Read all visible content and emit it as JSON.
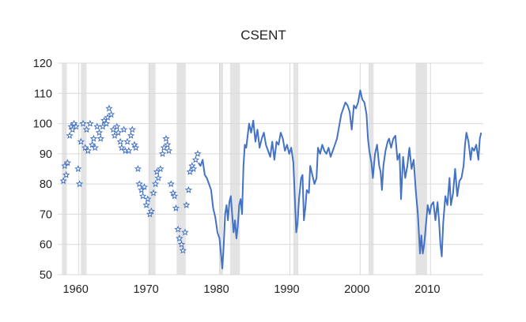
{
  "chart_data": {
    "type": "line",
    "title": "CSENT",
    "xlabel": "",
    "ylabel": "",
    "xlim": [
      1957,
      2017.5
    ],
    "ylim": [
      50,
      120
    ],
    "grid": true,
    "legend": "none",
    "y_ticks": [
      "50",
      "60",
      "70",
      "80",
      "90",
      "100",
      "110",
      "120"
    ],
    "x_ticks": [
      {
        "value": 1960,
        "label": "1960"
      },
      {
        "value": 1970,
        "label": "1970"
      },
      {
        "value": 1980,
        "label": "1980"
      },
      {
        "value": 1990,
        "label": "1990"
      },
      {
        "value": 2000,
        "label": "2000"
      },
      {
        "value": 2010,
        "label": "2010"
      }
    ],
    "colors": {
      "line": "#4472c4",
      "recession": "#e3e3e3",
      "grid": "#d9d9d9"
    },
    "recessions": [
      [
        1957.6,
        1958.3
      ],
      [
        1960.3,
        1961.1
      ],
      [
        1969.9,
        1970.9
      ],
      [
        1973.9,
        1975.2
      ],
      [
        1980.0,
        1980.5
      ],
      [
        1981.5,
        1982.9
      ],
      [
        1990.5,
        1991.2
      ],
      [
        2001.2,
        2001.9
      ],
      [
        2007.9,
        2009.5
      ]
    ],
    "series": [
      {
        "style": "markers",
        "points": [
          [
            1957.8,
            81
          ],
          [
            1958.0,
            86
          ],
          [
            1958.2,
            83
          ],
          [
            1958.4,
            87
          ],
          [
            1958.7,
            96
          ],
          [
            1958.9,
            99
          ],
          [
            1959.1,
            98
          ],
          [
            1959.3,
            100
          ],
          [
            1959.6,
            99
          ],
          [
            1959.9,
            85
          ],
          [
            1960.1,
            80
          ],
          [
            1960.3,
            94
          ],
          [
            1960.6,
            100
          ],
          [
            1960.9,
            92
          ],
          [
            1961.1,
            98
          ],
          [
            1961.3,
            91
          ],
          [
            1961.6,
            100
          ],
          [
            1961.9,
            93
          ],
          [
            1962.1,
            95
          ],
          [
            1962.3,
            92
          ],
          [
            1962.6,
            99
          ],
          [
            1962.9,
            97
          ],
          [
            1963.1,
            95
          ],
          [
            1963.4,
            99
          ],
          [
            1963.6,
            101
          ],
          [
            1963.9,
            100
          ],
          [
            1964.1,
            102
          ],
          [
            1964.3,
            105
          ],
          [
            1964.6,
            103
          ],
          [
            1964.9,
            98
          ],
          [
            1965.1,
            96
          ],
          [
            1965.4,
            99
          ],
          [
            1965.6,
            97
          ],
          [
            1965.9,
            94
          ],
          [
            1966.1,
            92
          ],
          [
            1966.4,
            98
          ],
          [
            1966.6,
            91
          ],
          [
            1966.9,
            94
          ],
          [
            1967.1,
            91
          ],
          [
            1967.4,
            96
          ],
          [
            1967.6,
            98
          ],
          [
            1967.9,
            93
          ],
          [
            1968.1,
            92
          ],
          [
            1968.4,
            85
          ],
          [
            1968.6,
            80
          ],
          [
            1968.9,
            78
          ],
          [
            1969.1,
            76
          ],
          [
            1969.3,
            79
          ],
          [
            1969.6,
            73
          ],
          [
            1969.8,
            75
          ],
          [
            1970.1,
            70
          ],
          [
            1970.3,
            71
          ],
          [
            1970.6,
            77
          ],
          [
            1970.9,
            80
          ],
          [
            1971.1,
            84
          ],
          [
            1971.3,
            82
          ],
          [
            1971.6,
            85
          ],
          [
            1971.9,
            90
          ],
          [
            1972.1,
            92
          ],
          [
            1972.4,
            95
          ],
          [
            1972.6,
            93
          ],
          [
            1972.8,
            91
          ],
          [
            1973.1,
            80
          ],
          [
            1973.4,
            77
          ],
          [
            1973.6,
            76
          ],
          [
            1973.8,
            72
          ],
          [
            1974.1,
            65
          ],
          [
            1974.3,
            62
          ],
          [
            1974.6,
            60
          ],
          [
            1974.8,
            58
          ],
          [
            1975.1,
            64
          ],
          [
            1975.3,
            73
          ],
          [
            1975.6,
            78
          ],
          [
            1975.8,
            84
          ],
          [
            1976.1,
            86
          ],
          [
            1976.3,
            85
          ],
          [
            1976.6,
            88
          ],
          [
            1976.9,
            90
          ]
        ]
      },
      {
        "style": "line",
        "points": [
          [
            1977.0,
            87
          ],
          [
            1977.3,
            86
          ],
          [
            1977.6,
            88
          ],
          [
            1977.9,
            83
          ],
          [
            1978.2,
            82
          ],
          [
            1978.5,
            80
          ],
          [
            1978.8,
            78
          ],
          [
            1979.1,
            72
          ],
          [
            1979.4,
            69
          ],
          [
            1979.7,
            64
          ],
          [
            1980.0,
            62
          ],
          [
            1980.2,
            57
          ],
          [
            1980.4,
            52
          ],
          [
            1980.6,
            60
          ],
          [
            1980.8,
            70
          ],
          [
            1981.0,
            73
          ],
          [
            1981.2,
            68
          ],
          [
            1981.4,
            74
          ],
          [
            1981.6,
            76
          ],
          [
            1981.8,
            70
          ],
          [
            1982.0,
            64
          ],
          [
            1982.2,
            68
          ],
          [
            1982.4,
            62
          ],
          [
            1982.6,
            66
          ],
          [
            1982.8,
            73
          ],
          [
            1983.0,
            75
          ],
          [
            1983.2,
            70
          ],
          [
            1983.4,
            86
          ],
          [
            1983.6,
            93
          ],
          [
            1983.8,
            92
          ],
          [
            1984.0,
            96
          ],
          [
            1984.2,
            100
          ],
          [
            1984.5,
            97
          ],
          [
            1984.8,
            101
          ],
          [
            1985.1,
            94
          ],
          [
            1985.4,
            98
          ],
          [
            1985.7,
            92
          ],
          [
            1986.0,
            95
          ],
          [
            1986.3,
            97
          ],
          [
            1986.6,
            93
          ],
          [
            1986.9,
            91
          ],
          [
            1987.2,
            89
          ],
          [
            1987.5,
            94
          ],
          [
            1987.8,
            88
          ],
          [
            1988.1,
            94
          ],
          [
            1988.4,
            93
          ],
          [
            1988.7,
            97
          ],
          [
            1989.0,
            95
          ],
          [
            1989.3,
            91
          ],
          [
            1989.6,
            93
          ],
          [
            1989.9,
            90
          ],
          [
            1990.2,
            92
          ],
          [
            1990.5,
            87
          ],
          [
            1990.8,
            70
          ],
          [
            1990.9,
            64
          ],
          [
            1991.1,
            67
          ],
          [
            1991.3,
            75
          ],
          [
            1991.6,
            82
          ],
          [
            1991.8,
            83
          ],
          [
            1992.0,
            68
          ],
          [
            1992.2,
            72
          ],
          [
            1992.4,
            78
          ],
          [
            1992.7,
            77
          ],
          [
            1992.9,
            86
          ],
          [
            1993.2,
            83
          ],
          [
            1993.5,
            80
          ],
          [
            1993.8,
            82
          ],
          [
            1994.0,
            92
          ],
          [
            1994.3,
            90
          ],
          [
            1994.6,
            93
          ],
          [
            1994.9,
            91
          ],
          [
            1995.2,
            90
          ],
          [
            1995.5,
            92
          ],
          [
            1995.8,
            89
          ],
          [
            1996.1,
            91
          ],
          [
            1996.4,
            93
          ],
          [
            1996.7,
            95
          ],
          [
            1997.0,
            99
          ],
          [
            1997.3,
            103
          ],
          [
            1997.6,
            105
          ],
          [
            1997.9,
            107
          ],
          [
            1998.2,
            106
          ],
          [
            1998.5,
            104
          ],
          [
            1998.8,
            98
          ],
          [
            1999.1,
            106
          ],
          [
            1999.4,
            105
          ],
          [
            1999.7,
            107
          ],
          [
            2000.0,
            111
          ],
          [
            2000.3,
            108
          ],
          [
            2000.6,
            107
          ],
          [
            2000.9,
            103
          ],
          [
            2001.1,
            95
          ],
          [
            2001.3,
            91
          ],
          [
            2001.6,
            87
          ],
          [
            2001.8,
            82
          ],
          [
            2002.1,
            90
          ],
          [
            2002.4,
            93
          ],
          [
            2002.7,
            86
          ],
          [
            2002.9,
            84
          ],
          [
            2003.1,
            78
          ],
          [
            2003.3,
            86
          ],
          [
            2003.6,
            91
          ],
          [
            2003.9,
            94
          ],
          [
            2004.1,
            95
          ],
          [
            2004.4,
            92
          ],
          [
            2004.7,
            95
          ],
          [
            2005.0,
            96
          ],
          [
            2005.3,
            88
          ],
          [
            2005.6,
            90
          ],
          [
            2005.8,
            75
          ],
          [
            2006.1,
            89
          ],
          [
            2006.4,
            82
          ],
          [
            2006.7,
            86
          ],
          [
            2007.0,
            92
          ],
          [
            2007.3,
            85
          ],
          [
            2007.6,
            88
          ],
          [
            2007.9,
            78
          ],
          [
            2008.2,
            70
          ],
          [
            2008.5,
            57
          ],
          [
            2008.7,
            63
          ],
          [
            2008.9,
            57
          ],
          [
            2009.1,
            60
          ],
          [
            2009.4,
            68
          ],
          [
            2009.6,
            73
          ],
          [
            2009.9,
            70
          ],
          [
            2010.1,
            73
          ],
          [
            2010.4,
            74
          ],
          [
            2010.7,
            68
          ],
          [
            2011.0,
            74
          ],
          [
            2011.2,
            68
          ],
          [
            2011.4,
            60
          ],
          [
            2011.6,
            56
          ],
          [
            2011.8,
            67
          ],
          [
            2012.1,
            76
          ],
          [
            2012.4,
            73
          ],
          [
            2012.7,
            82
          ],
          [
            2012.9,
            73
          ],
          [
            2013.2,
            77
          ],
          [
            2013.5,
            85
          ],
          [
            2013.8,
            76
          ],
          [
            2014.1,
            81
          ],
          [
            2014.4,
            82
          ],
          [
            2014.7,
            86
          ],
          [
            2014.9,
            93
          ],
          [
            2015.1,
            97
          ],
          [
            2015.4,
            94
          ],
          [
            2015.7,
            88
          ],
          [
            2015.9,
            92
          ],
          [
            2016.2,
            91
          ],
          [
            2016.5,
            93
          ],
          [
            2016.8,
            88
          ],
          [
            2017.0,
            95
          ],
          [
            2017.2,
            97
          ]
        ]
      }
    ]
  }
}
